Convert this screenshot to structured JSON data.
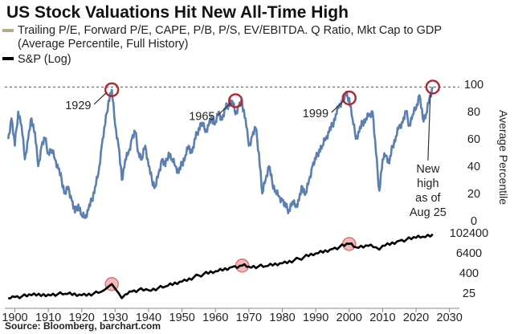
{
  "chart_data": [
    {
      "type": "line",
      "title": "US Stock Valuations Hit New All-Time High",
      "legend": [
        {
          "label": "Trailing P/E, Forward P/E, CAPE, P/B, P/S, EV/EBITDA. Q Ratio, Mkt Cap to GDP",
          "label_line2": "(Average Percentile, Full History)",
          "color": "#b7a98a"
        },
        {
          "label": "S&P (Log)",
          "color": "#000000"
        }
      ],
      "ylabel": "Average Percentile",
      "xlim": [
        1897,
        2032
      ],
      "ylim": [
        0,
        100
      ],
      "yticks": [
        "100",
        "80",
        "60",
        "40",
        "20",
        "0"
      ],
      "reference_line": 98,
      "series": [
        {
          "name": "Average Percentile",
          "color": "#5b7fb0",
          "x": [
            1898,
            1899,
            1900,
            1901,
            1902,
            1903,
            1904,
            1905,
            1906,
            1907,
            1908,
            1909,
            1910,
            1911,
            1912,
            1913,
            1914,
            1915,
            1916,
            1917,
            1918,
            1919,
            1920,
            1921,
            1922,
            1923,
            1924,
            1925,
            1926,
            1927,
            1928,
            1929,
            1930,
            1931,
            1932,
            1933,
            1934,
            1935,
            1936,
            1937,
            1938,
            1939,
            1940,
            1941,
            1942,
            1943,
            1944,
            1945,
            1946,
            1947,
            1948,
            1949,
            1950,
            1951,
            1952,
            1953,
            1954,
            1955,
            1956,
            1957,
            1958,
            1959,
            1960,
            1961,
            1962,
            1963,
            1964,
            1965,
            1966,
            1967,
            1968,
            1969,
            1970,
            1971,
            1972,
            1973,
            1974,
            1975,
            1976,
            1977,
            1978,
            1979,
            1980,
            1981,
            1982,
            1983,
            1984,
            1985,
            1986,
            1987,
            1988,
            1989,
            1990,
            1991,
            1992,
            1993,
            1994,
            1995,
            1996,
            1997,
            1998,
            1999,
            2000,
            2001,
            2002,
            2003,
            2004,
            2005,
            2006,
            2007,
            2008,
            2009,
            2010,
            2011,
            2012,
            2013,
            2014,
            2015,
            2016,
            2017,
            2018,
            2019,
            2020,
            2021,
            2022,
            2023,
            2024,
            2025
          ],
          "values": [
            60,
            75,
            55,
            80,
            70,
            45,
            60,
            75,
            65,
            40,
            55,
            60,
            50,
            52,
            45,
            38,
            30,
            20,
            25,
            15,
            6,
            12,
            4,
            2,
            8,
            15,
            25,
            35,
            55,
            70,
            88,
            96,
            70,
            55,
            30,
            45,
            50,
            60,
            65,
            50,
            45,
            55,
            40,
            30,
            25,
            35,
            45,
            40,
            50,
            45,
            40,
            35,
            42,
            48,
            55,
            50,
            60,
            68,
            72,
            65,
            70,
            75,
            72,
            80,
            74,
            82,
            86,
            88,
            78,
            84,
            86,
            75,
            55,
            62,
            68,
            50,
            20,
            30,
            40,
            28,
            22,
            18,
            15,
            10,
            8,
            14,
            10,
            15,
            25,
            20,
            30,
            40,
            45,
            52,
            55,
            60,
            65,
            70,
            78,
            85,
            88,
            92,
            90,
            75,
            60,
            65,
            72,
            75,
            78,
            80,
            50,
            22,
            45,
            48,
            42,
            55,
            62,
            70,
            72,
            80,
            70,
            78,
            82,
            92,
            75,
            78,
            90,
            98
          ]
        },
        {
          "name": "S&P (Log)",
          "color": "#000000",
          "ylim_log": [
            8,
            102400
          ],
          "yticks": [
            "102400",
            "6400",
            "400",
            "25"
          ],
          "x": [
            1898,
            1900,
            1905,
            1910,
            1915,
            1920,
            1925,
            1926,
            1927,
            1928,
            1929,
            1930,
            1931,
            1932,
            1933,
            1935,
            1937,
            1940,
            1945,
            1950,
            1955,
            1960,
            1965,
            1968,
            1970,
            1975,
            1980,
            1985,
            1990,
            1995,
            2000,
            2002,
            2005,
            2008,
            2009,
            2010,
            2015,
            2020,
            2022,
            2025
          ],
          "values": [
            12,
            14,
            18,
            20,
            22,
            18,
            25,
            30,
            40,
            60,
            85,
            45,
            25,
            12,
            20,
            30,
            38,
            36,
            60,
            120,
            280,
            500,
            900,
            1100,
            950,
            1000,
            1500,
            2800,
            6000,
            11000,
            22000,
            14000,
            18000,
            14000,
            10000,
            17000,
            34000,
            52000,
            60000,
            85000
          ]
        }
      ],
      "annotations": [
        {
          "label": "1929",
          "year": 1929,
          "value": 96
        },
        {
          "label": "1965",
          "year": 1966,
          "value": 88
        },
        {
          "label": "1999",
          "year": 2000,
          "value": 90
        },
        {
          "label_lines": [
            "New",
            "high",
            "as of",
            "Aug 25"
          ],
          "year": 2025,
          "value": 98
        }
      ],
      "sp_highlights": [
        1929,
        1968,
        2000
      ],
      "xticks": [
        "1900",
        "1910",
        "1920",
        "1930",
        "1940",
        "1950",
        "1960",
        "1970",
        "1980",
        "1990",
        "2000",
        "2010",
        "2020",
        "2030"
      ]
    }
  ],
  "source": "Source: Bloomberg, barchart.com",
  "colors": {
    "percentile": "#5b7fb0",
    "sp": "#000000",
    "circle": "#b3262e",
    "highlight": "#f2b8b8",
    "legend_swatch": "#b7a98a"
  }
}
